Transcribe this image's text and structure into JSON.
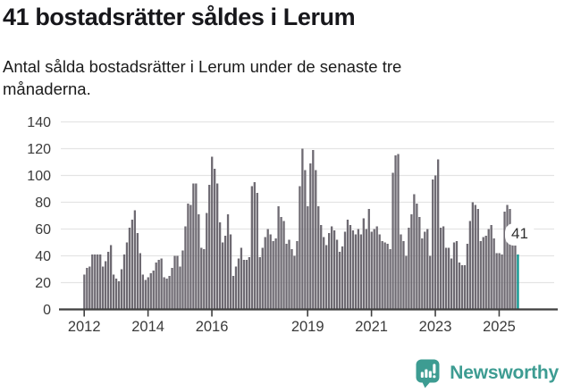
{
  "header": {
    "title": "41 bostadsrätter såldes i Lerum",
    "subtitle": "Antal sålda bostadsrätter i Lerum under de senaste tre månaderna."
  },
  "chart_data": {
    "type": "bar",
    "title": "41 bostadsrätter såldes i Lerum",
    "subtitle": "Antal sålda bostadsrätter i Lerum under de senaste tre månaderna.",
    "x_start": "2012-01",
    "x_end": "2025-08",
    "x_frequency": "monthly",
    "ylim": [
      0,
      140
    ],
    "yticks": [
      0,
      20,
      40,
      60,
      80,
      100,
      120,
      140
    ],
    "xtick_labels": [
      "2012",
      "2014",
      "2016",
      "2019",
      "2021",
      "2023",
      "2025"
    ],
    "grid": "horizontal",
    "bar_color": "#6e6a72",
    "highlight_color": "#0a948e",
    "highlight_last": true,
    "annotation": {
      "text": "41"
    },
    "values": [
      26,
      31,
      32,
      41,
      41,
      41,
      41,
      32,
      36,
      43,
      48,
      26,
      23,
      21,
      30,
      41,
      50,
      61,
      67,
      74,
      57,
      42,
      26,
      22,
      24,
      27,
      29,
      35,
      37,
      38,
      24,
      23,
      25,
      31,
      40,
      40,
      32,
      44,
      62,
      79,
      78,
      94,
      94,
      71,
      46,
      45,
      72,
      93,
      114,
      105,
      94,
      65,
      50,
      55,
      71,
      56,
      25,
      32,
      38,
      46,
      37,
      37,
      39,
      92,
      95,
      87,
      39,
      46,
      54,
      60,
      56,
      51,
      53,
      77,
      69,
      66,
      49,
      52,
      45,
      40,
      51,
      92,
      120,
      104,
      77,
      109,
      119,
      104,
      77,
      63,
      54,
      48,
      57,
      62,
      59,
      52,
      43,
      47,
      58,
      67,
      63,
      59,
      56,
      60,
      56,
      68,
      60,
      75,
      58,
      60,
      62,
      56,
      51,
      50,
      49,
      45,
      102,
      115,
      116,
      56,
      51,
      40,
      61,
      71,
      86,
      79,
      69,
      53,
      58,
      60,
      40,
      97,
      100,
      112,
      61,
      62,
      46,
      46,
      38,
      50,
      51,
      35,
      33,
      33,
      49,
      66,
      80,
      78,
      75,
      51,
      54,
      55,
      60,
      63,
      53,
      42,
      42,
      41,
      73,
      78,
      75,
      55,
      54,
      41
    ]
  },
  "footer": {
    "logo_text": "Newsworthy",
    "logo_color": "#3d9c92"
  }
}
